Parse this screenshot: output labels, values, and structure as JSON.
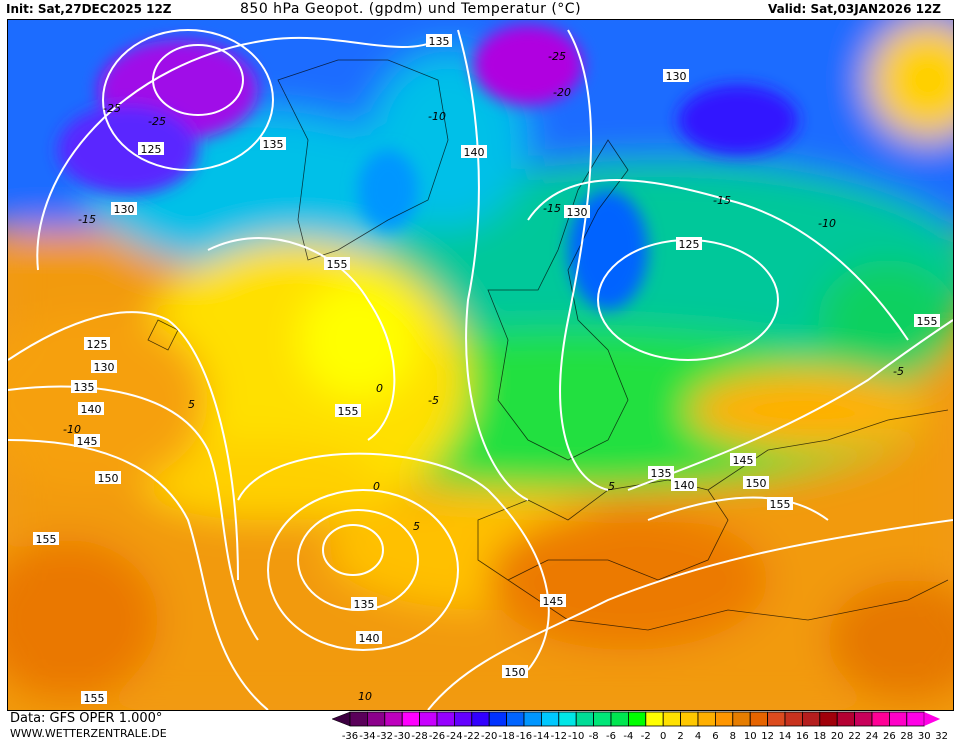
{
  "header": {
    "init": "Init: Sat,27DEC2025 12Z",
    "title": "850 hPa Geopot. (gpdm) und Temperatur (°C)",
    "valid": "Valid: Sat,03JAN2026 12Z"
  },
  "footer": {
    "data_source": "Data: GFS OPER 1.000°",
    "website": "WWW.WETTERZENTRALE.DE"
  },
  "colorbar": {
    "unit": "°C",
    "labels": [
      "-36",
      "-34",
      "-32",
      "-30",
      "-28",
      "-26",
      "-24",
      "-22",
      "-20",
      "-18",
      "-16",
      "-14",
      "-12",
      "-10",
      "-8",
      "-6",
      "-4",
      "-2",
      "0",
      "2",
      "4",
      "6",
      "8",
      "10",
      "12",
      "14",
      "16",
      "18",
      "20",
      "22",
      "24",
      "26",
      "28",
      "30",
      "32"
    ],
    "under_color": "#3c0040",
    "over_color": "#ff00e6",
    "colors": [
      "#5a005a",
      "#8c008c",
      "#be00be",
      "#ff00ff",
      "#c800ff",
      "#9600ff",
      "#6400ff",
      "#3200ff",
      "#0032ff",
      "#0064ff",
      "#0096ff",
      "#00c8ff",
      "#00e6e6",
      "#00dc96",
      "#00e678",
      "#00e650",
      "#00ff00",
      "#ffff00",
      "#ffe100",
      "#ffc800",
      "#ffaf00",
      "#ff9600",
      "#e67d00",
      "#e66400",
      "#dc4b1e",
      "#c8321e",
      "#b41e1e",
      "#a0000a",
      "#b40032",
      "#c8005a",
      "#ff0096",
      "#ff00c8",
      "#ff00e6"
    ]
  },
  "geopotential_labels": [
    "135",
    "130",
    "125",
    "135",
    "140",
    "130",
    "130",
    "125",
    "155",
    "155",
    "125",
    "130",
    "135",
    "140",
    "145",
    "155",
    "150",
    "135",
    "140",
    "145",
    "150",
    "155",
    "155",
    "135",
    "140",
    "145",
    "150",
    "155"
  ],
  "temperature_labels": [
    "-25",
    "-25",
    "-20",
    "-25",
    "-15",
    "-10",
    "-15",
    "-10",
    "-15",
    "-5",
    "0",
    "5",
    "-5",
    "-10",
    "0",
    "5",
    "5",
    "10"
  ]
}
